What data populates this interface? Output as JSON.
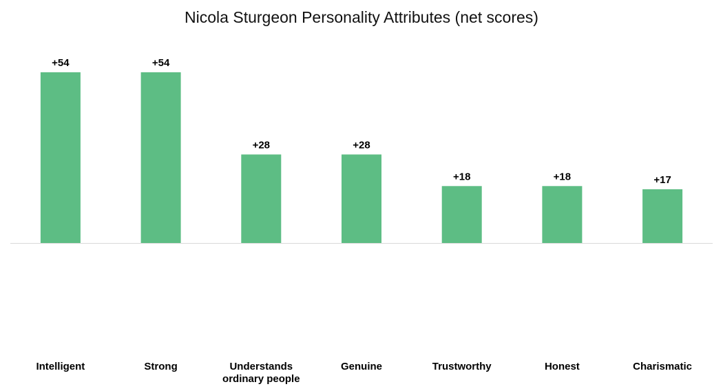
{
  "chart_data": {
    "type": "bar",
    "title": "Nicola Sturgeon Personality Attributes (net scores)",
    "xlabel": "",
    "ylabel": "",
    "categories": [
      [
        "Intelligent"
      ],
      [
        "Strong"
      ],
      [
        "Understands",
        "ordinary people"
      ],
      [
        "Genuine"
      ],
      [
        "Trustworthy"
      ],
      [
        "Honest"
      ],
      [
        "Charismatic"
      ]
    ],
    "values": [
      54,
      54,
      28,
      28,
      18,
      18,
      17
    ],
    "value_labels": [
      "+54",
      "+54",
      "+28",
      "+28",
      "+18",
      "+18",
      "+17"
    ],
    "ylim": [
      -40,
      60
    ],
    "grid": false,
    "legend": "none",
    "colors": {
      "bar": "#5dbd84",
      "baseline": "#d9d9d9",
      "text": "#000000"
    }
  }
}
